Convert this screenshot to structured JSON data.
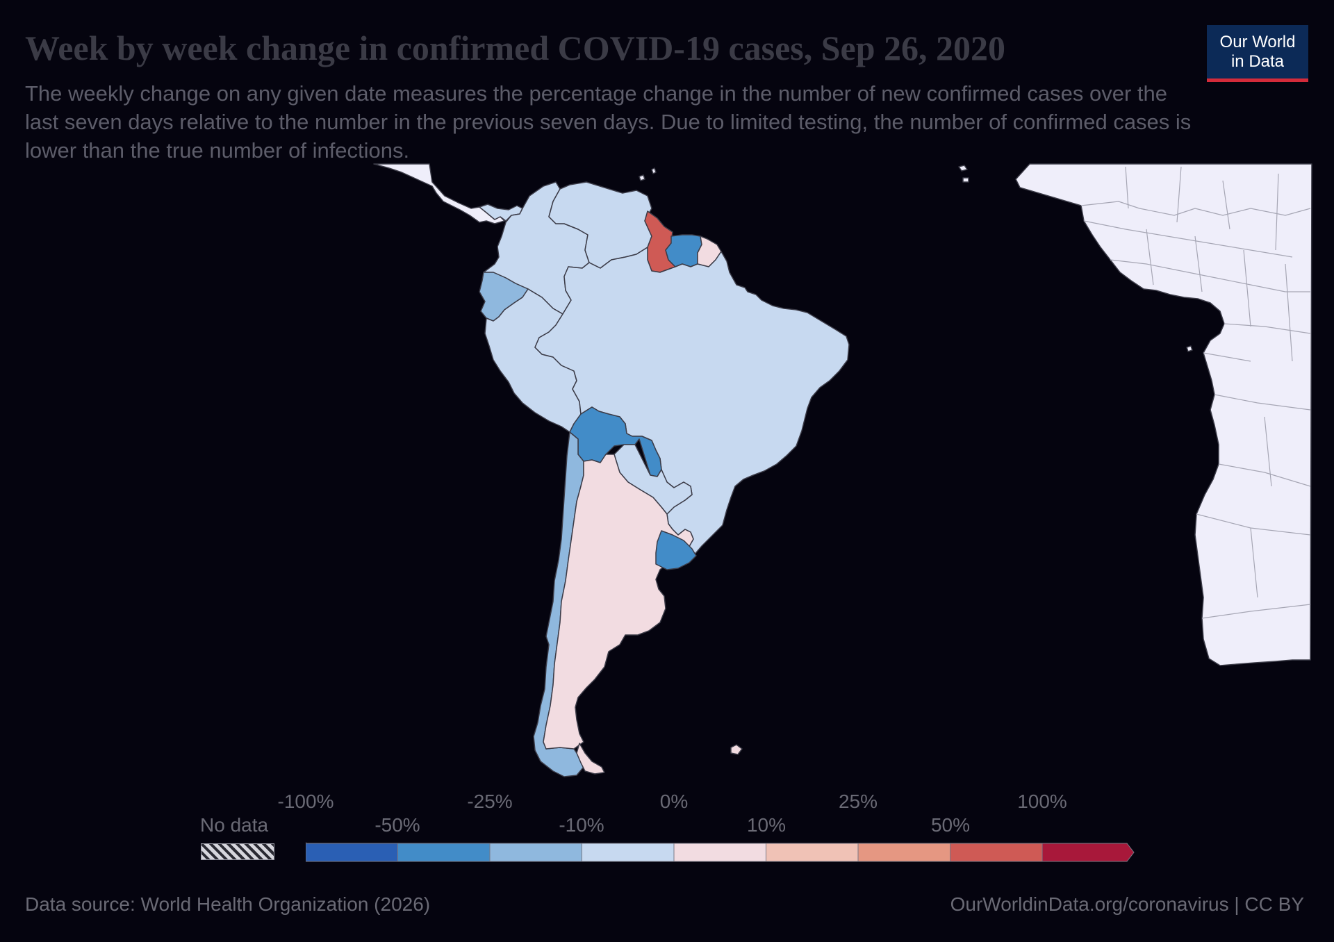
{
  "header": {
    "title": "Week by week change in confirmed COVID-19 cases, Sep 26, 2020",
    "subtitle": "The weekly change on any given date measures the percentage change in the number of new confirmed cases over the last seven days relative to the number in the previous seven days. Due to limited testing, the number of confirmed cases is lower than the true number of infections."
  },
  "logo": {
    "line1": "Our World",
    "line2": "in Data"
  },
  "colors": {
    "background": "#05040f",
    "bin_minus_100": "#2a5fb4",
    "bin_minus_50": "#428cc8",
    "bin_minus_25": "#8fb8de",
    "bin_minus_10": "#c7d9f0",
    "bin_plus_0": "#f2dce1",
    "bin_plus_10": "#f0c2b6",
    "bin_plus_25": "#e59782",
    "bin_plus_50": "#cf5a55",
    "bin_plus_100": "#a8183a",
    "no_data_region": "#efeefa",
    "border": "#3c3c48"
  },
  "map_data": {
    "countries": [
      {
        "name": "Brazil",
        "bin": "-10% to 0%"
      },
      {
        "name": "Colombia",
        "bin": "-10% to 0%"
      },
      {
        "name": "Venezuela",
        "bin": "-10% to 0%"
      },
      {
        "name": "Peru",
        "bin": "-10% to 0%"
      },
      {
        "name": "Paraguay",
        "bin": "-10% to 0%"
      },
      {
        "name": "Panama",
        "bin": "-10% to 0%"
      },
      {
        "name": "Ecuador",
        "bin": "-25% to -10%"
      },
      {
        "name": "Chile",
        "bin": "-25% to -10%"
      },
      {
        "name": "Bolivia",
        "bin": "-50% to -25%"
      },
      {
        "name": "Suriname",
        "bin": "-50% to -25%"
      },
      {
        "name": "Uruguay",
        "bin": "-50% to -25%"
      },
      {
        "name": "Guyana",
        "bin": "50% to 100%"
      },
      {
        "name": "French Guiana",
        "bin": "0% to 10%"
      },
      {
        "name": "Argentina",
        "bin": "0% to 10%"
      },
      {
        "name": "Falkland Islands",
        "bin": "0% to 10%"
      }
    ]
  },
  "legend": {
    "no_data_label": "No data",
    "top_labels": [
      "-100%",
      "-25%",
      "0%",
      "25%",
      "100%"
    ],
    "bottom_labels": [
      "-50%",
      "-10%",
      "10%",
      "50%"
    ]
  },
  "footer": {
    "source": "Data source: World Health Organization (2026)",
    "link": "OurWorldinData.org/coronavirus | CC BY"
  }
}
